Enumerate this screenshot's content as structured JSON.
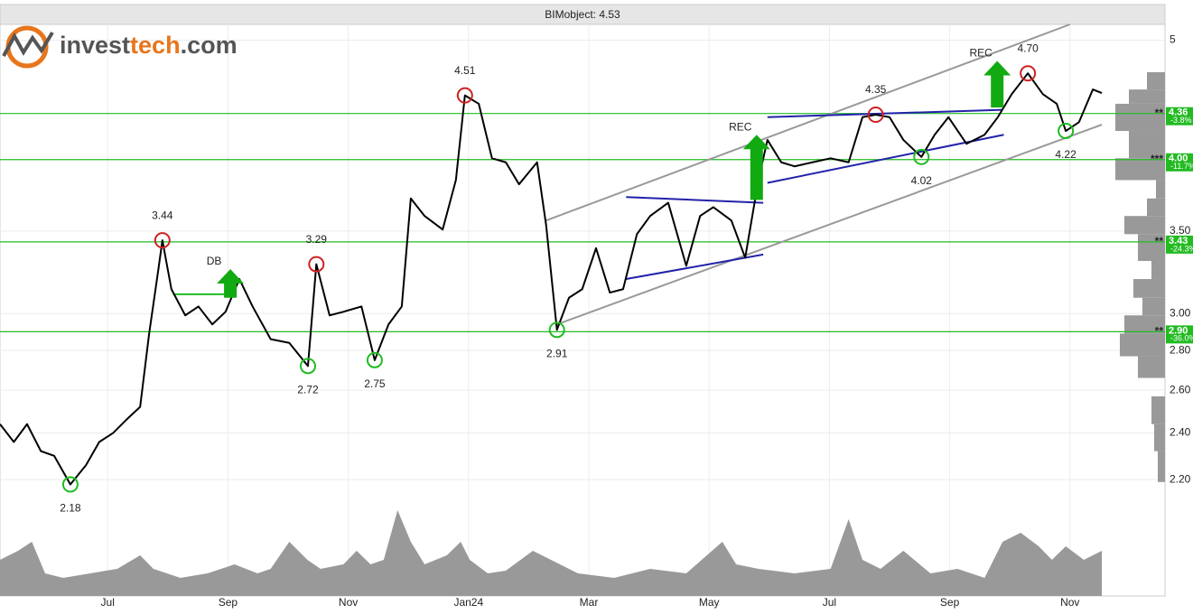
{
  "chart_data": {
    "type": "line",
    "title": "BIMobject: 4.53",
    "logo": [
      "invest",
      "tech",
      ".com"
    ],
    "log_y": true,
    "grid": true,
    "color": "#000000",
    "xlim": [
      0.21,
      19.58
    ],
    "ylim": [
      1.77,
      5.15
    ],
    "xticks": [
      {
        "value": 2,
        "label": "Jul"
      },
      {
        "value": 4,
        "label": "Sep"
      },
      {
        "value": 6,
        "label": "Nov"
      },
      {
        "value": 8,
        "label": "Jan24"
      },
      {
        "value": 10,
        "label": "Mar"
      },
      {
        "value": 12,
        "label": "May"
      },
      {
        "value": 14,
        "label": "Jul"
      },
      {
        "value": 16,
        "label": "Sep"
      },
      {
        "value": 18,
        "label": "Nov"
      }
    ],
    "yticks": [
      5,
      {
        "value": 3.5,
        "label": "3.50"
      },
      {
        "value": 3.0,
        "label": "3.00"
      },
      {
        "value": 2.8,
        "label": "2.80"
      },
      {
        "value": 2.6,
        "label": "2.60"
      },
      {
        "value": 2.4,
        "label": "2.40"
      },
      {
        "value": 2.2,
        "label": "2.20"
      }
    ],
    "x": [
      0.21,
      0.44,
      0.66,
      0.89,
      1.11,
      1.38,
      1.64,
      1.86,
      2.09,
      2.31,
      2.54,
      2.69,
      2.84,
      2.91,
      3.06,
      3.29,
      3.51,
      3.74,
      3.96,
      4.19,
      4.41,
      4.71,
      5.02,
      5.33,
      5.47,
      5.69,
      5.92,
      6.22,
      6.44,
      6.67,
      6.89,
      7.04,
      7.27,
      7.57,
      7.79,
      7.94,
      8.17,
      8.39,
      8.62,
      8.84,
      9.14,
      9.29,
      9.47,
      9.67,
      9.89,
      10.12,
      10.35,
      10.57,
      10.8,
      11.02,
      11.32,
      11.62,
      11.85,
      12.07,
      12.37,
      12.6,
      12.82,
      12.97,
      13.2,
      13.42,
      13.72,
      14.02,
      14.32,
      14.55,
      14.77,
      15.0,
      15.23,
      15.53,
      15.75,
      15.98,
      16.28,
      16.58,
      16.8,
      17.03,
      17.3,
      17.55,
      17.78,
      17.93,
      18.15,
      18.38,
      18.53
    ],
    "values": [
      2.44,
      2.36,
      2.44,
      2.32,
      2.3,
      2.18,
      2.26,
      2.36,
      2.4,
      2.46,
      2.52,
      2.89,
      3.25,
      3.44,
      3.14,
      2.99,
      3.04,
      2.94,
      3.01,
      3.2,
      3.04,
      2.86,
      2.84,
      2.72,
      3.29,
      2.99,
      3.01,
      3.04,
      2.75,
      2.94,
      3.04,
      3.72,
      3.6,
      3.51,
      3.85,
      4.51,
      4.44,
      4.01,
      3.98,
      3.82,
      3.98,
      3.54,
      2.91,
      3.09,
      3.14,
      3.39,
      3.12,
      3.14,
      3.48,
      3.6,
      3.69,
      3.28,
      3.6,
      3.66,
      3.57,
      3.33,
      3.85,
      4.15,
      3.98,
      3.95,
      3.98,
      4.01,
      3.98,
      4.33,
      4.35,
      4.33,
      4.15,
      4.02,
      4.19,
      4.33,
      4.12,
      4.19,
      4.33,
      4.52,
      4.7,
      4.52,
      4.44,
      4.22,
      4.29,
      4.56,
      4.53
    ],
    "markers": {
      "x": [
        1.38,
        2.91,
        5.33,
        5.47,
        6.44,
        7.94,
        9.47,
        14.77,
        15.53,
        17.3,
        17.93
      ],
      "values": [
        2.18,
        3.44,
        2.72,
        3.29,
        2.75,
        4.51,
        2.91,
        4.35,
        4.02,
        4.7,
        4.22
      ],
      "value_labels": [
        "2.18",
        "3.44",
        "2.72",
        "3.29",
        "2.75",
        "4.51",
        "2.91",
        "4.35",
        "4.02",
        "4.70",
        "4.22"
      ],
      "kinds": [
        "low",
        "high",
        "low",
        "high",
        "low",
        "high",
        "low",
        "high",
        "low",
        "high",
        "low"
      ]
    },
    "levels": [
      {
        "value": 4.36,
        "label": "4.36",
        "change": "-3.8%",
        "stars": "**"
      },
      {
        "value": 4.0,
        "label": "4.00",
        "change": "-11.7%",
        "stars": "***"
      },
      {
        "value": 3.43,
        "label": "3.43",
        "change": "-24.3%",
        "stars": "**"
      },
      {
        "value": 2.9,
        "label": "2.90",
        "change": "-36.0%",
        "stars": "**"
      }
    ],
    "level_color": "#22bb22",
    "trend_lines": [
      {
        "color": "#999999",
        "x": [
          9.29,
          18.0
        ],
        "values": [
          3.57,
          5.15
        ]
      },
      {
        "color": "#999999",
        "x": [
          9.47,
          18.53
        ],
        "values": [
          2.94,
          4.27
        ]
      },
      {
        "color": "#2222aa",
        "x": [
          10.62,
          12.9
        ],
        "values": [
          3.73,
          3.69
        ]
      },
      {
        "color": "#2222aa",
        "x": [
          10.62,
          12.9
        ],
        "values": [
          3.2,
          3.35
        ]
      },
      {
        "color": "#2222aa",
        "x": [
          12.97,
          16.9
        ],
        "values": [
          3.83,
          4.19
        ]
      },
      {
        "color": "#2222aa",
        "x": [
          12.97,
          16.87
        ],
        "values": [
          4.33,
          4.39
        ]
      },
      {
        "color": "#22bb22",
        "x": [
          3.09,
          4.14
        ],
        "values": [
          3.11,
          3.11
        ]
      }
    ],
    "signals": [
      {
        "x": 4.04,
        "y": 3.09,
        "y_top": 3.26,
        "label": "DB"
      },
      {
        "x": 12.79,
        "y": 3.71,
        "y_top": 4.19,
        "label": "REC"
      },
      {
        "x": 16.79,
        "y": 4.41,
        "y_top": 4.81,
        "label": "REC"
      }
    ],
    "signal_color": "#11aa11",
    "volume": {
      "color": "#999999",
      "ylim": [
        0,
        100
      ],
      "x": [
        0.21,
        0.51,
        0.74,
        0.96,
        1.26,
        1.71,
        2.16,
        2.54,
        2.76,
        3.21,
        3.66,
        4.11,
        4.49,
        4.71,
        5.02,
        5.32,
        5.54,
        5.92,
        6.14,
        6.37,
        6.59,
        6.82,
        7.04,
        7.27,
        7.64,
        7.87,
        8.02,
        8.32,
        8.62,
        9.07,
        9.37,
        9.82,
        10.42,
        11.02,
        11.62,
        12.22,
        12.45,
        12.82,
        13.42,
        14.02,
        14.32,
        14.55,
        14.85,
        15.23,
        15.68,
        16.13,
        16.58,
        16.88,
        17.18,
        17.48,
        17.7,
        17.93,
        18.23,
        18.53
      ],
      "values": [
        40,
        50,
        60,
        25,
        20,
        25,
        30,
        45,
        30,
        20,
        25,
        35,
        25,
        30,
        60,
        40,
        30,
        35,
        50,
        35,
        40,
        95,
        60,
        35,
        45,
        60,
        40,
        25,
        28,
        50,
        40,
        25,
        20,
        30,
        25,
        60,
        35,
        30,
        25,
        30,
        85,
        40,
        30,
        50,
        25,
        30,
        20,
        60,
        70,
        55,
        40,
        55,
        40,
        50
      ]
    },
    "profile": {
      "color": "#999999",
      "xlim": [
        0,
        60
      ],
      "bins": [
        2.19,
        2.32,
        2.44,
        2.57,
        2.66,
        2.77,
        2.89,
        2.99,
        3.09,
        3.2,
        3.31,
        3.48,
        3.6,
        3.72,
        3.85,
        4.01,
        4.22,
        4.44,
        4.56,
        4.71
      ],
      "counts": [
        8,
        12,
        15,
        0,
        30,
        50,
        45,
        25,
        35,
        15,
        30,
        45,
        20,
        10,
        55,
        40,
        55,
        40,
        20
      ]
    }
  }
}
